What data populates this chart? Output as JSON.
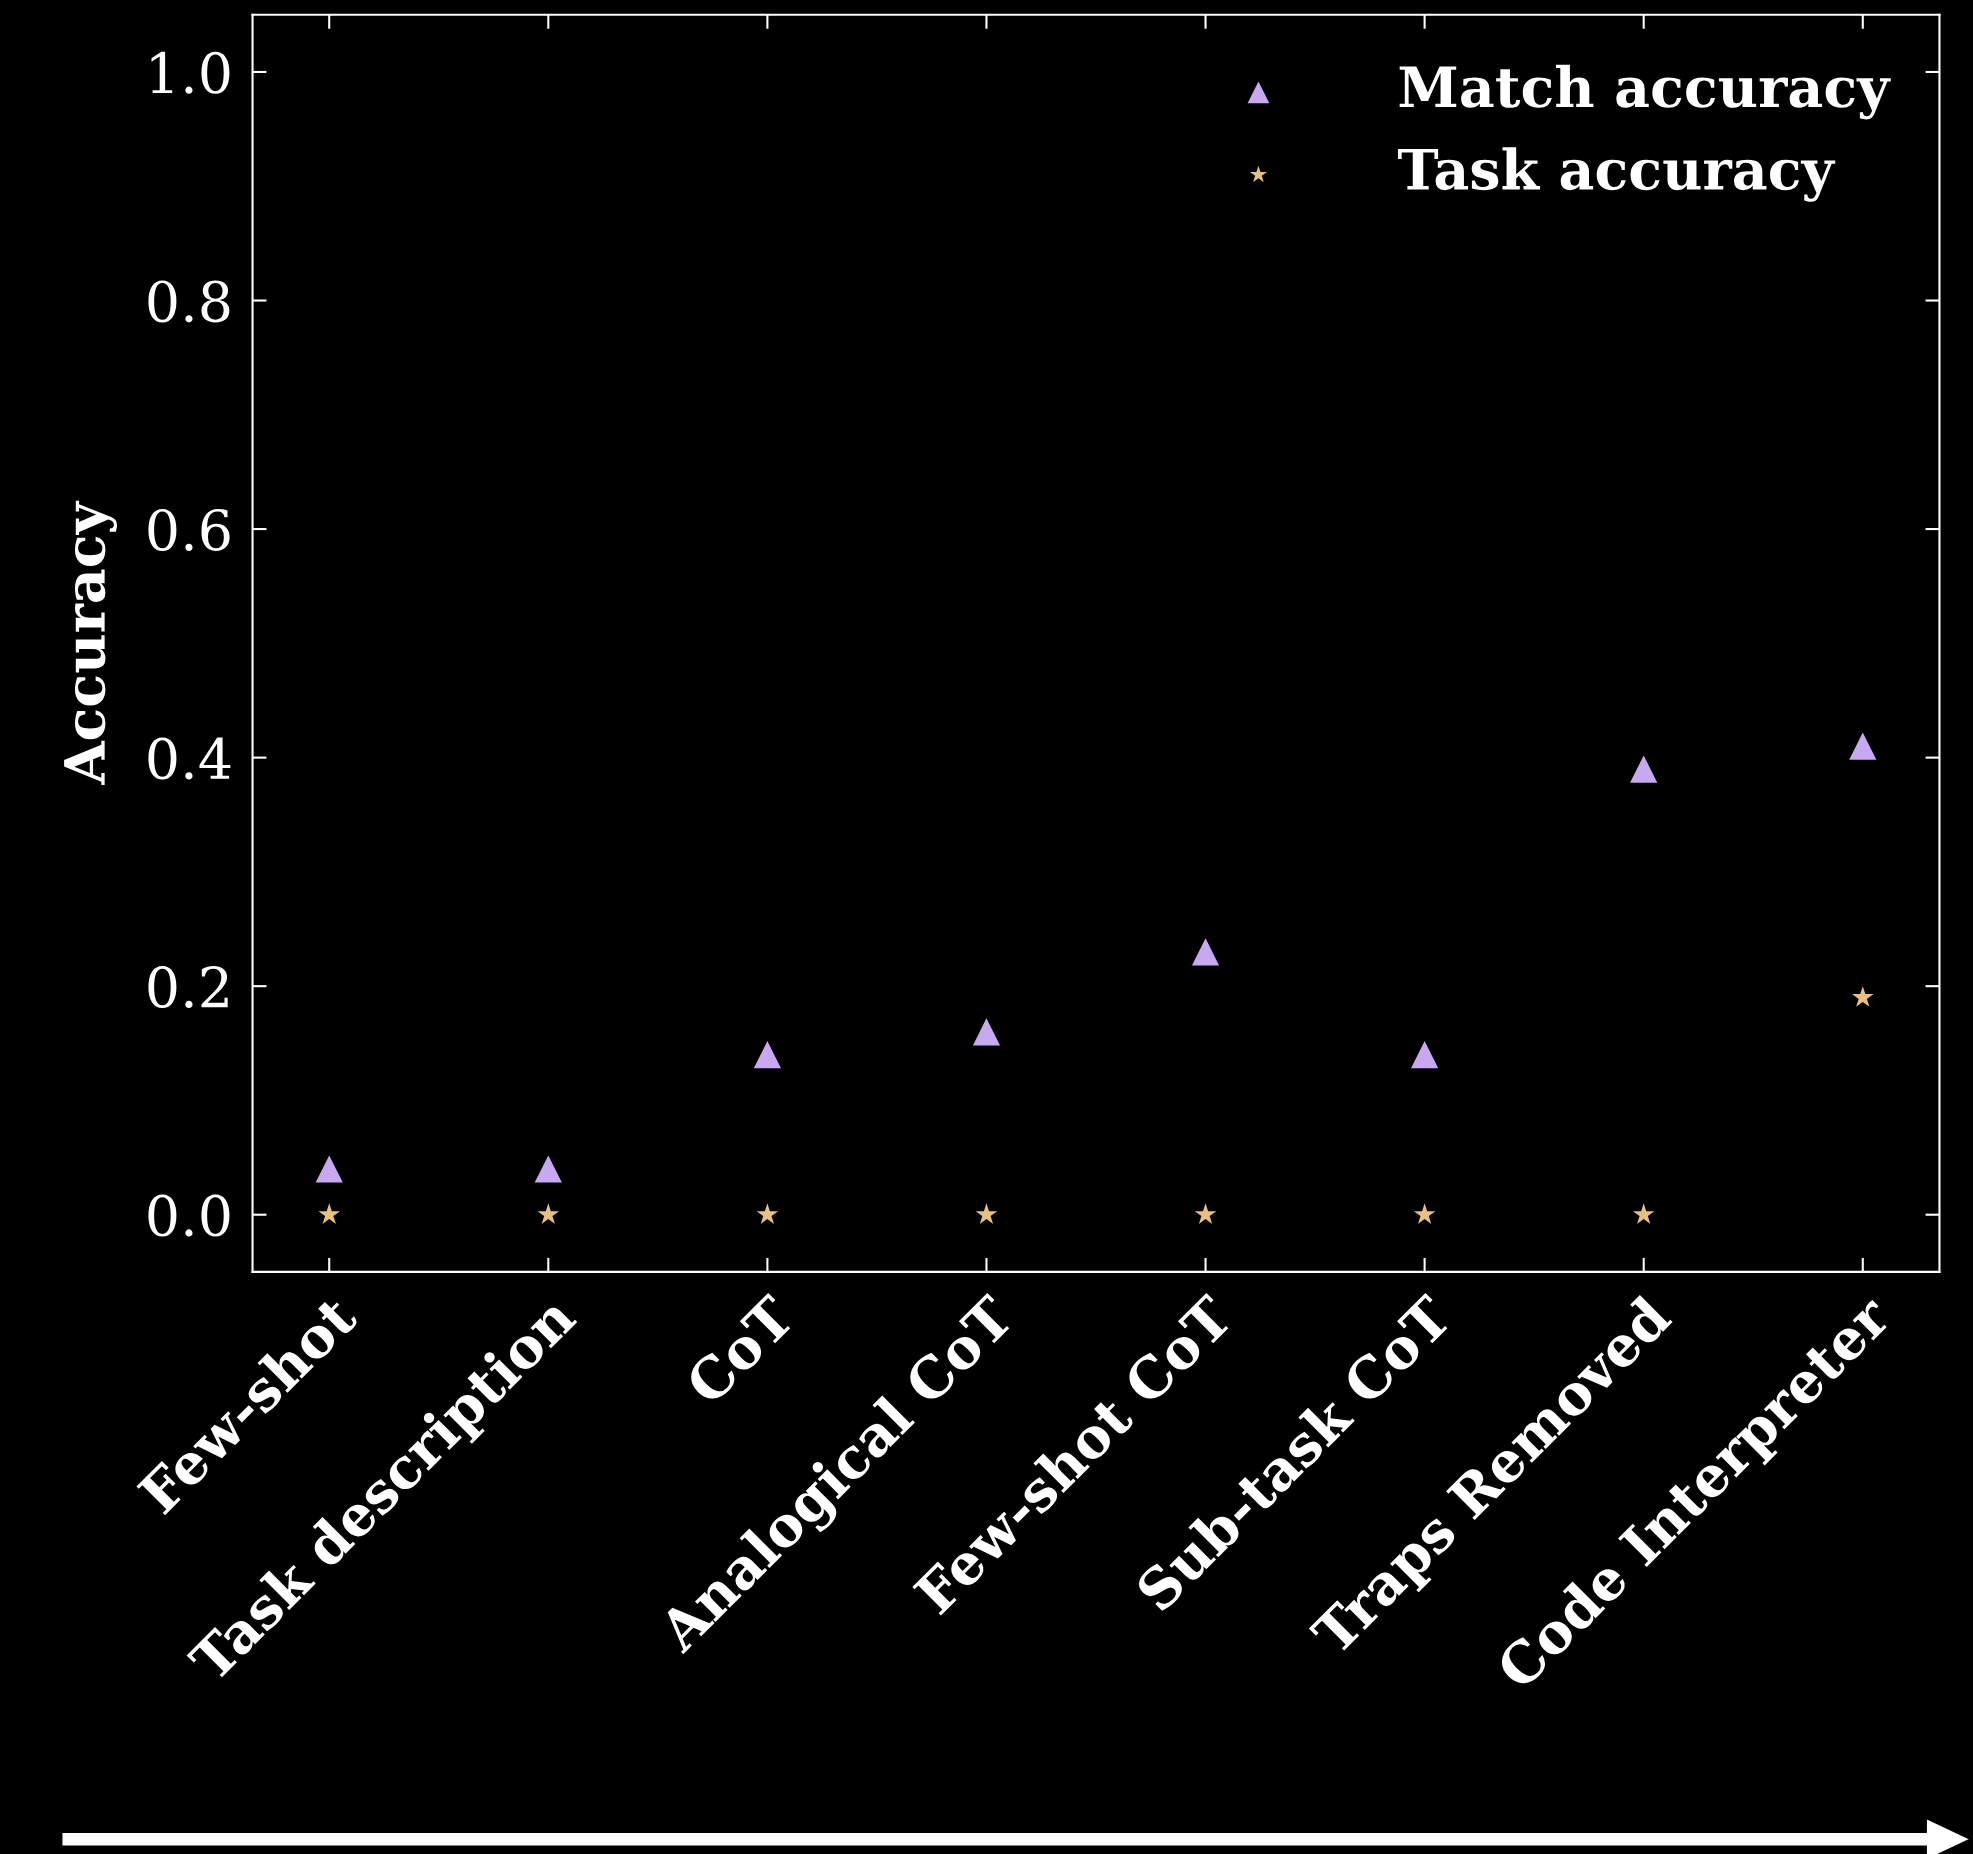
{
  "chart_data": {
    "type": "scatter",
    "ylabel": "Accuracy",
    "categories": [
      "Few-shot",
      "Task description",
      "CoT",
      "Analogical CoT",
      "Few-shot CoT",
      "Sub-task CoT",
      "Traps Removed",
      "Code Interpreter"
    ],
    "series": [
      {
        "name": "Match accuracy",
        "color": "#c8a8f0",
        "marker": "triangle",
        "values": [
          0.04,
          0.04,
          0.14,
          0.16,
          0.23,
          0.14,
          0.39,
          0.41
        ]
      },
      {
        "name": "Task accuracy",
        "color": "#e8c080",
        "marker": "star",
        "values": [
          0,
          0,
          0,
          0,
          0,
          0,
          0,
          0.19
        ]
      }
    ],
    "ylim": [
      -0.05,
      1.05
    ],
    "yticks": [
      {
        "value": 0,
        "label": "0.0"
      },
      {
        "value": 0.2,
        "label": "0.2"
      },
      {
        "value": 0.4,
        "label": "0.4"
      },
      {
        "value": 0.6,
        "label": "0.6"
      },
      {
        "value": 0.8,
        "label": "0.8"
      },
      {
        "value": 1,
        "label": "1.0"
      }
    ],
    "grid": false,
    "legend": "top right"
  }
}
